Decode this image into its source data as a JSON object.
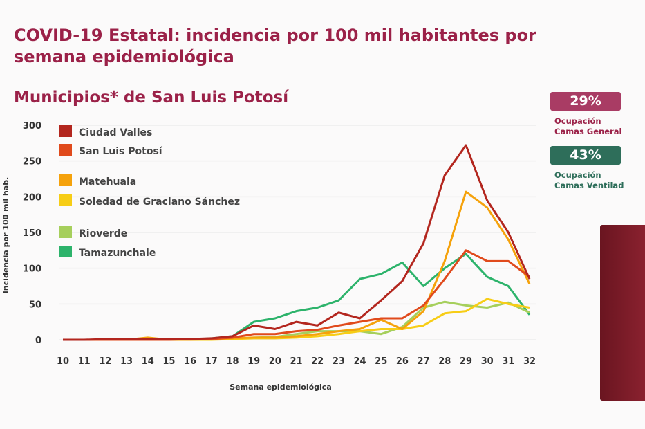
{
  "header": {
    "title": "COVID-19 Estatal: incidencia por 100 mil habitantes por semana epidemiológica",
    "subtitle": "Municipios* de San Luis Potosí"
  },
  "indicators": [
    {
      "value": "29%",
      "label_line1": "Ocupación",
      "label_line2": "Camas General",
      "color": "#a93c64"
    },
    {
      "value": "43%",
      "label_line1": "Ocupación",
      "label_line2": "Camas Ventilad",
      "color": "#2e6e5a"
    }
  ],
  "chart_data": {
    "type": "line",
    "xlabel": "Semana epidemiológica",
    "ylabel": "Incidencia por 100 mil hab.",
    "x": [
      10,
      11,
      12,
      13,
      14,
      15,
      16,
      17,
      18,
      19,
      20,
      21,
      22,
      23,
      24,
      25,
      26,
      27,
      28,
      29,
      30,
      31,
      32
    ],
    "ylim": [
      0,
      300
    ],
    "yticks": [
      0,
      50,
      100,
      150,
      200,
      250,
      300
    ],
    "grid": true,
    "legend": "top-left",
    "series": [
      {
        "name": "Ciudad Valles",
        "color": "#b3261e",
        "values": [
          0,
          0,
          1,
          1,
          1,
          1,
          1,
          2,
          5,
          20,
          15,
          25,
          20,
          38,
          30,
          55,
          82,
          135,
          230,
          272,
          195,
          150,
          85
        ]
      },
      {
        "name": "San Luis Potosí",
        "color": "#e04a1c",
        "values": [
          0,
          0,
          0,
          0,
          0,
          0,
          1,
          1,
          3,
          8,
          8,
          12,
          14,
          20,
          25,
          30,
          30,
          48,
          85,
          125,
          110,
          110,
          88
        ]
      },
      {
        "name": "Matehuala",
        "color": "#f5a20c",
        "values": [
          0,
          0,
          0,
          0,
          3,
          0,
          0,
          1,
          2,
          3,
          3,
          5,
          8,
          12,
          15,
          28,
          15,
          40,
          110,
          207,
          185,
          140,
          78
        ]
      },
      {
        "name": "Soledad de Graciano Sánchez",
        "color": "#f7cd16",
        "values": [
          0,
          0,
          0,
          0,
          0,
          0,
          0,
          0,
          1,
          2,
          2,
          3,
          5,
          8,
          12,
          15,
          15,
          20,
          37,
          40,
          57,
          50,
          45
        ]
      },
      {
        "name": "Rioverde",
        "color": "#a6cf5c",
        "values": [
          0,
          0,
          0,
          0,
          0,
          0,
          0,
          1,
          1,
          3,
          4,
          8,
          12,
          12,
          12,
          8,
          18,
          45,
          53,
          48,
          45,
          52,
          38
        ]
      },
      {
        "name": "Tamazunchale",
        "color": "#2db36b",
        "values": [
          0,
          0,
          0,
          0,
          0,
          0,
          0,
          2,
          5,
          25,
          30,
          40,
          45,
          55,
          85,
          92,
          108,
          75,
          100,
          120,
          88,
          75,
          35
        ]
      }
    ]
  }
}
